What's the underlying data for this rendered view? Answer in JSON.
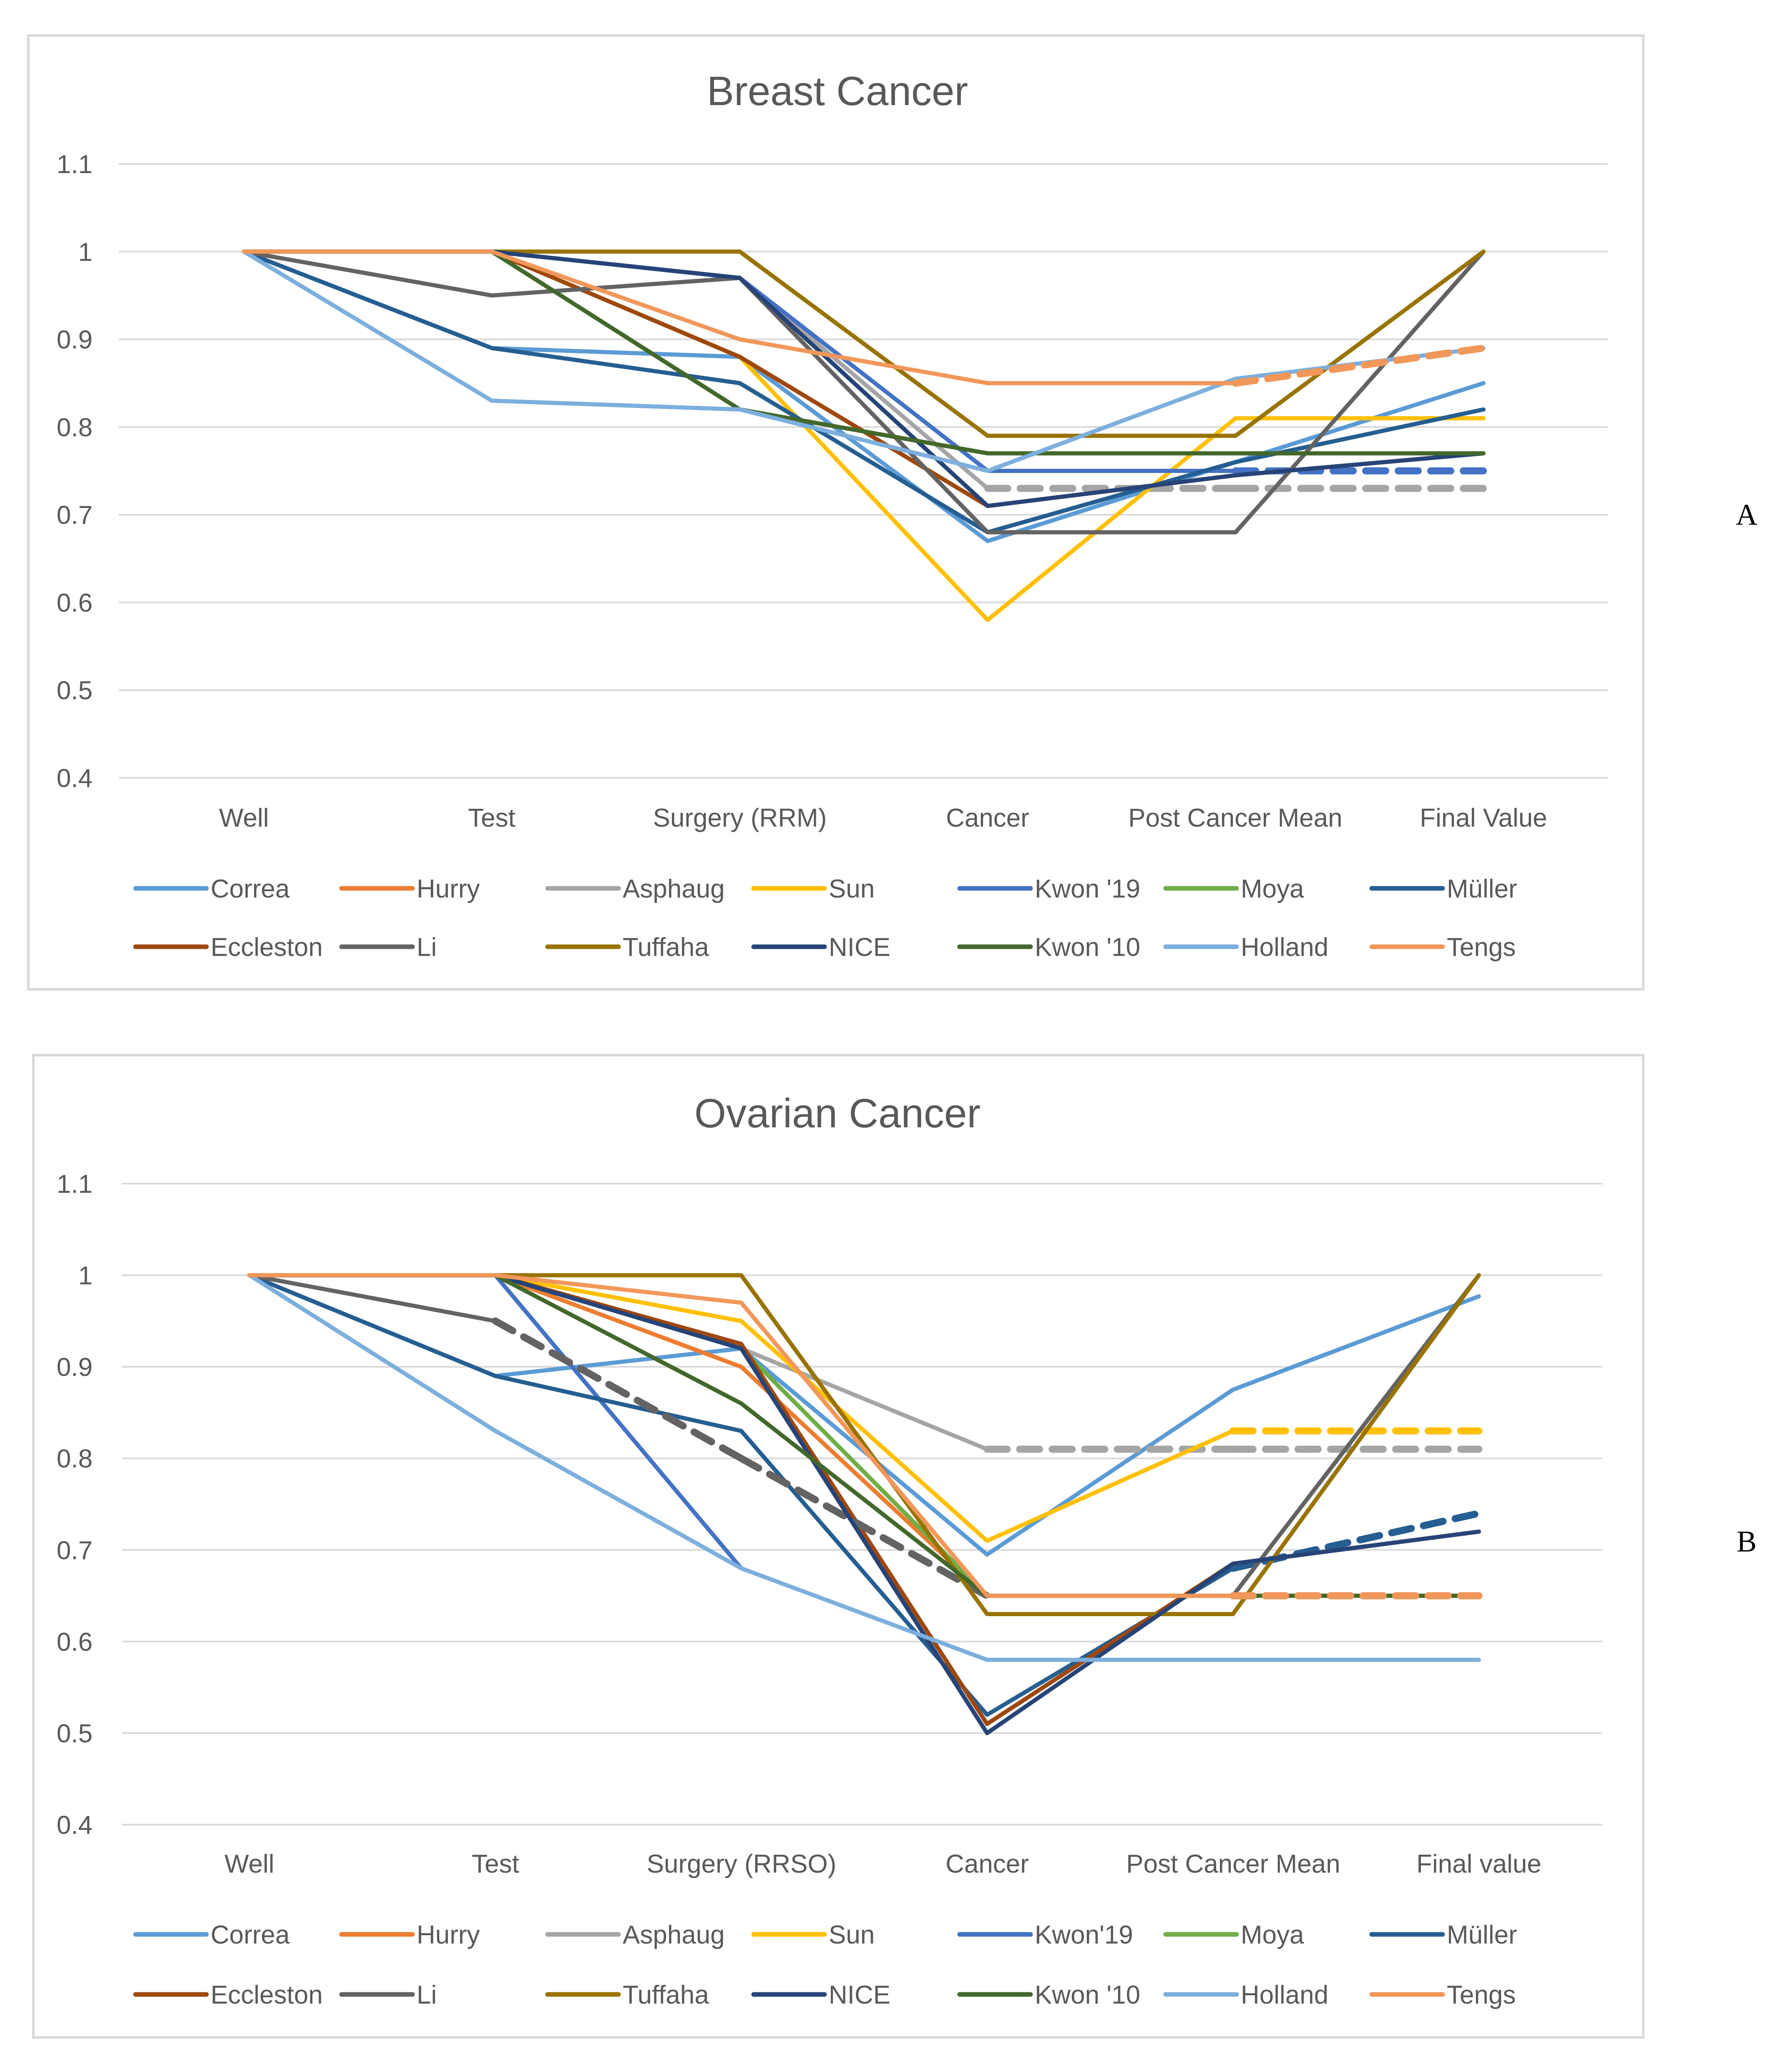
{
  "colors": {
    "Correa": "#5B9BD5",
    "Hurry": "#ED7D31",
    "Asphaug": "#A5A5A5",
    "Sun": "#FFC000",
    "Kwon19": "#4472C4",
    "Moya": "#70AD47",
    "Muller": "#255E91",
    "Eccleston": "#9E480E",
    "Li": "#636363",
    "Tuffaha": "#997300",
    "NICE": "#264478",
    "Kwon10": "#43682B",
    "Holland": "#7CAFDD",
    "Tengs": "#F1975A"
  },
  "chart_data": [
    {
      "type": "line",
      "panel_label": "A",
      "title": "Breast Cancer",
      "categories": [
        "Well",
        "Test",
        "Surgery (RRM)",
        "Cancer",
        "Post Cancer Mean",
        "Final Value"
      ],
      "ylim": [
        0.4,
        1.1
      ],
      "yticks": [
        "0.4",
        "0.5",
        "0.6",
        "0.7",
        "0.8",
        "0.9",
        "1",
        "1.1"
      ],
      "ytick_values": [
        0.4,
        0.5,
        0.6,
        0.7,
        0.8,
        0.9,
        1.0,
        1.1
      ],
      "grid": true,
      "legend_position": "bottom",
      "series": [
        {
          "name": "Correa",
          "key": "Correa",
          "values": [
            1,
            0.89,
            0.88,
            0.67,
            0.76,
            0.85
          ]
        },
        {
          "name": "Hurry",
          "key": "Hurry",
          "values": [
            1,
            1,
            0.88,
            0.71,
            null,
            null
          ]
        },
        {
          "name": "Asphaug",
          "key": "Asphaug",
          "values": [
            1,
            1,
            0.97,
            0.73,
            0.73,
            0.73
          ],
          "dashed_from": 3
        },
        {
          "name": "Sun",
          "key": "Sun",
          "values": [
            1,
            1,
            0.88,
            0.58,
            0.81,
            0.81
          ]
        },
        {
          "name": "Kwon '19",
          "key": "Kwon19",
          "values": [
            1,
            1,
            0.97,
            0.75,
            0.75,
            0.75
          ],
          "dashed_from": 4
        },
        {
          "name": "Moya",
          "key": "Moya",
          "values": [
            1,
            1,
            0.82,
            0.77,
            0.77,
            0.77
          ]
        },
        {
          "name": "Müller",
          "key": "Muller",
          "values": [
            1,
            0.89,
            0.85,
            0.68,
            0.76,
            0.82
          ]
        },
        {
          "name": "Eccleston",
          "key": "Eccleston",
          "values": [
            1,
            1,
            0.88,
            0.71,
            0.745,
            0.77
          ]
        },
        {
          "name": "Li",
          "key": "Li",
          "values": [
            1,
            0.95,
            0.97,
            0.68,
            0.68,
            1
          ]
        },
        {
          "name": "Tuffaha",
          "key": "Tuffaha",
          "values": [
            1,
            1,
            1,
            0.79,
            0.79,
            1
          ]
        },
        {
          "name": "NICE",
          "key": "NICE",
          "values": [
            1,
            1,
            0.97,
            0.71,
            0.745,
            0.77
          ]
        },
        {
          "name": "Kwon '10",
          "key": "Kwon10",
          "values": [
            1,
            1,
            0.82,
            0.77,
            0.77,
            0.77
          ]
        },
        {
          "name": "Holland",
          "key": "Holland",
          "values": [
            1,
            0.83,
            0.82,
            0.75,
            0.855,
            0.89
          ]
        },
        {
          "name": "Tengs",
          "key": "Tengs",
          "values": [
            1,
            1,
            0.9,
            0.85,
            0.85,
            0.89
          ],
          "dashed_from": 4
        }
      ]
    },
    {
      "type": "line",
      "panel_label": "B",
      "title": "Ovarian Cancer",
      "categories": [
        "Well",
        "Test",
        "Surgery (RRSO)",
        "Cancer",
        "Post Cancer Mean",
        "Final value"
      ],
      "ylim": [
        0.4,
        1.1
      ],
      "yticks": [
        "0.4",
        "0.5",
        "0.6",
        "0.7",
        "0.8",
        "0.9",
        "1",
        "1.1"
      ],
      "ytick_values": [
        0.4,
        0.5,
        0.6,
        0.7,
        0.8,
        0.9,
        1.0,
        1.1
      ],
      "grid": true,
      "legend_position": "bottom",
      "series": [
        {
          "name": "Correa",
          "key": "Correa",
          "values": [
            1,
            0.89,
            0.92,
            0.695,
            0.875,
            0.977
          ]
        },
        {
          "name": "Hurry",
          "key": "Hurry",
          "values": [
            1,
            1,
            0.9,
            0.65,
            0.65,
            0.65
          ],
          "dashed_from": 4
        },
        {
          "name": "Asphaug",
          "key": "Asphaug",
          "values": [
            1,
            1,
            0.92,
            0.81,
            0.81,
            0.81
          ],
          "dashed_from": 3
        },
        {
          "name": "Sun",
          "key": "Sun",
          "values": [
            1,
            1,
            0.95,
            0.71,
            0.83,
            0.83
          ],
          "dashed_from": 4
        },
        {
          "name": "Kwon'19",
          "key": "Kwon19",
          "values": [
            1,
            1,
            0.68,
            null,
            null,
            null
          ]
        },
        {
          "name": "Moya",
          "key": "Moya",
          "values": [
            1,
            1,
            0.92,
            0.65,
            0.65,
            0.65
          ]
        },
        {
          "name": "Müller",
          "key": "Muller",
          "values": [
            1,
            0.89,
            0.83,
            0.52,
            0.68,
            0.74
          ],
          "dashed_from": 4
        },
        {
          "name": "Eccleston",
          "key": "Eccleston",
          "values": [
            1,
            1,
            0.925,
            0.51,
            0.685,
            0.72
          ]
        },
        {
          "name": "Li",
          "key": "Li",
          "values": [
            1,
            0.95,
            0.8,
            0.65,
            0.65,
            1
          ],
          "dashed_from": 1,
          "dashed_until": 3
        },
        {
          "name": "Tuffaha",
          "key": "Tuffaha",
          "values": [
            1,
            1,
            1,
            0.63,
            0.63,
            1
          ]
        },
        {
          "name": "NICE",
          "key": "NICE",
          "values": [
            1,
            1,
            0.92,
            0.5,
            0.685,
            0.72
          ]
        },
        {
          "name": "Kwon '10",
          "key": "Kwon10",
          "values": [
            1,
            1,
            0.86,
            0.65,
            0.65,
            0.65
          ]
        },
        {
          "name": "Holland",
          "key": "Holland",
          "values": [
            1,
            0.83,
            0.68,
            0.58,
            0.58,
            0.58
          ]
        },
        {
          "name": "Tengs",
          "key": "Tengs",
          "values": [
            1,
            1,
            0.97,
            0.65,
            0.65,
            0.65
          ],
          "dashed_from": 4
        }
      ]
    }
  ]
}
